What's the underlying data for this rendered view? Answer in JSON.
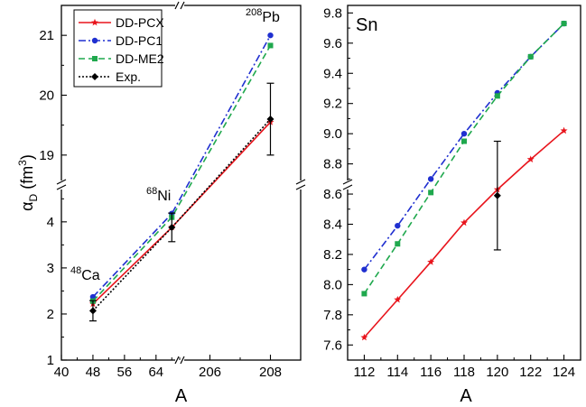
{
  "chart_data": [
    {
      "type": "line",
      "ylabel_main": "α",
      "ylabel_sub": "D",
      "ylabel_unit_open": " (fm",
      "ylabel_unit_sup": "3",
      "ylabel_unit_close": ")",
      "xlabel": "A",
      "x_segments": [
        {
          "range": [
            40,
            70
          ],
          "ticks": [
            "40",
            "48",
            "56",
            "64"
          ],
          "tick_values": [
            40,
            48,
            56,
            64
          ]
        },
        {
          "range": [
            205,
            209
          ],
          "ticks": [
            "206",
            "208"
          ],
          "tick_values": [
            206,
            208
          ]
        }
      ],
      "y_segments": [
        {
          "range": [
            1,
            4.8
          ],
          "ticks": [
            "1",
            "2",
            "3",
            "4"
          ],
          "tick_values": [
            1,
            2,
            3,
            4
          ]
        },
        {
          "range": [
            18.5,
            21.5
          ],
          "ticks": [
            "19",
            "20",
            "21"
          ],
          "tick_values": [
            19,
            20,
            21
          ]
        }
      ],
      "series": [
        {
          "name": "DD-PCX",
          "color": "#e8141c",
          "dash": "solid",
          "marker": "star",
          "points": [
            [
              48,
              2.22
            ],
            [
              68,
              3.88
            ],
            [
              208,
              19.55
            ]
          ]
        },
        {
          "name": "DD-PC1",
          "color": "#1f2fd0",
          "dash": "dashdot",
          "marker": "circle",
          "points": [
            [
              48,
              2.37
            ],
            [
              68,
              4.18
            ],
            [
              208,
              21.0
            ]
          ]
        },
        {
          "name": "DD-ME2",
          "color": "#1fa84d",
          "dash": "dash",
          "marker": "square",
          "points": [
            [
              48,
              2.28
            ],
            [
              68,
              4.1
            ],
            [
              208,
              20.83
            ]
          ]
        },
        {
          "name": "Exp.",
          "color": "#000000",
          "dash": "dot",
          "marker": "diamond",
          "points": [
            [
              48,
              2.07,
              0.22
            ],
            [
              68,
              3.88,
              0.31
            ],
            [
              208,
              19.6,
              0.6
            ]
          ]
        }
      ],
      "annotations": [
        {
          "sup": "48",
          "text": "Ca"
        },
        {
          "sup": "68",
          "text": "Ni"
        },
        {
          "sup": "208",
          "text": "Pb"
        }
      ],
      "legend": "top-left"
    },
    {
      "type": "line",
      "title": "Sn",
      "xlabel": "A",
      "xlim": [
        111,
        125
      ],
      "ylim": [
        7.5,
        9.85
      ],
      "xticks": [
        "112",
        "114",
        "116",
        "118",
        "120",
        "122",
        "124"
      ],
      "xtick_values": [
        112,
        114,
        116,
        118,
        120,
        122,
        124
      ],
      "yticks": [
        "7.6",
        "7.8",
        "8.0",
        "8.2",
        "8.4",
        "8.6",
        "8.8",
        "9.0",
        "9.2",
        "9.4",
        "9.6",
        "9.8"
      ],
      "ytick_values": [
        7.6,
        7.8,
        8.0,
        8.2,
        8.4,
        8.6,
        8.8,
        9.0,
        9.2,
        9.4,
        9.6,
        9.8
      ],
      "series": [
        {
          "name": "DD-PCX",
          "color": "#e8141c",
          "dash": "solid",
          "marker": "star",
          "points": [
            [
              112,
              7.65
            ],
            [
              114,
              7.9
            ],
            [
              116,
              8.15
            ],
            [
              118,
              8.41
            ],
            [
              120,
              8.63
            ],
            [
              122,
              8.83
            ],
            [
              124,
              9.02
            ]
          ]
        },
        {
          "name": "DD-PC1",
          "color": "#1f2fd0",
          "dash": "dashdot",
          "marker": "circle",
          "points": [
            [
              112,
              8.1
            ],
            [
              114,
              8.39
            ],
            [
              116,
              8.7
            ],
            [
              118,
              9.0
            ],
            [
              120,
              9.27
            ],
            [
              122,
              9.51
            ],
            [
              124,
              9.73
            ]
          ]
        },
        {
          "name": "DD-ME2",
          "color": "#1fa84d",
          "dash": "dash",
          "marker": "square",
          "points": [
            [
              112,
              7.94
            ],
            [
              114,
              8.27
            ],
            [
              116,
              8.61
            ],
            [
              118,
              8.95
            ],
            [
              120,
              9.25
            ],
            [
              122,
              9.51
            ],
            [
              124,
              9.73
            ]
          ]
        },
        {
          "name": "Exp.",
          "color": "#000000",
          "dash": "dot",
          "marker": "diamond",
          "points": [
            [
              120,
              8.59,
              0.36
            ]
          ]
        }
      ]
    }
  ]
}
